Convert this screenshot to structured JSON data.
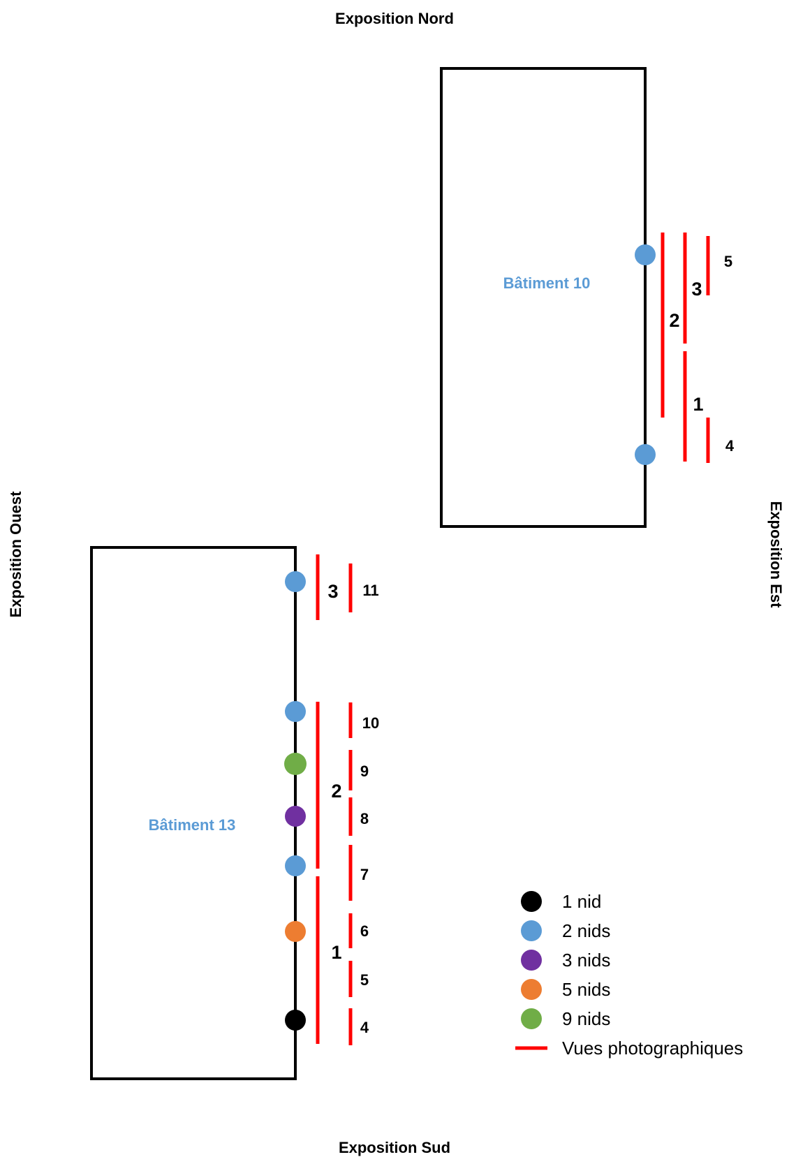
{
  "orientations": {
    "north": "Exposition Nord",
    "south": "Exposition Sud",
    "west": "Exposition Ouest",
    "east": "Exposition Est"
  },
  "buildings": {
    "b10": {
      "name": "Bâtiment 10",
      "views_major": [
        "2",
        "3",
        "1"
      ],
      "views_minor": [
        "5",
        "4"
      ],
      "nests": [
        "blue",
        "blue"
      ]
    },
    "b13": {
      "name": "Bâtiment 13",
      "views_major": [
        "3",
        "2",
        "1"
      ],
      "views_minor": [
        "11",
        "10",
        "9",
        "8",
        "7",
        "6",
        "5",
        "4"
      ],
      "nests": [
        "blue",
        "blue",
        "green",
        "purple",
        "blue",
        "orange",
        "black"
      ]
    }
  },
  "legend": {
    "items": [
      {
        "label": "1 nid",
        "color": "#000000"
      },
      {
        "label": "2 nids",
        "color": "#5b9bd5"
      },
      {
        "label": "3 nids",
        "color": "#7030a0"
      },
      {
        "label": "5 nids",
        "color": "#ed7d31"
      },
      {
        "label": "9 nids",
        "color": "#70ad47"
      }
    ],
    "line_label": "Vues photographiques",
    "line_color": "#ff0000"
  },
  "colors": {
    "black": "#000000",
    "blue": "#5b9bd5",
    "purple": "#7030a0",
    "orange": "#ed7d31",
    "green": "#70ad47",
    "red": "#ff0000",
    "building_label": "#5b9bd5"
  }
}
